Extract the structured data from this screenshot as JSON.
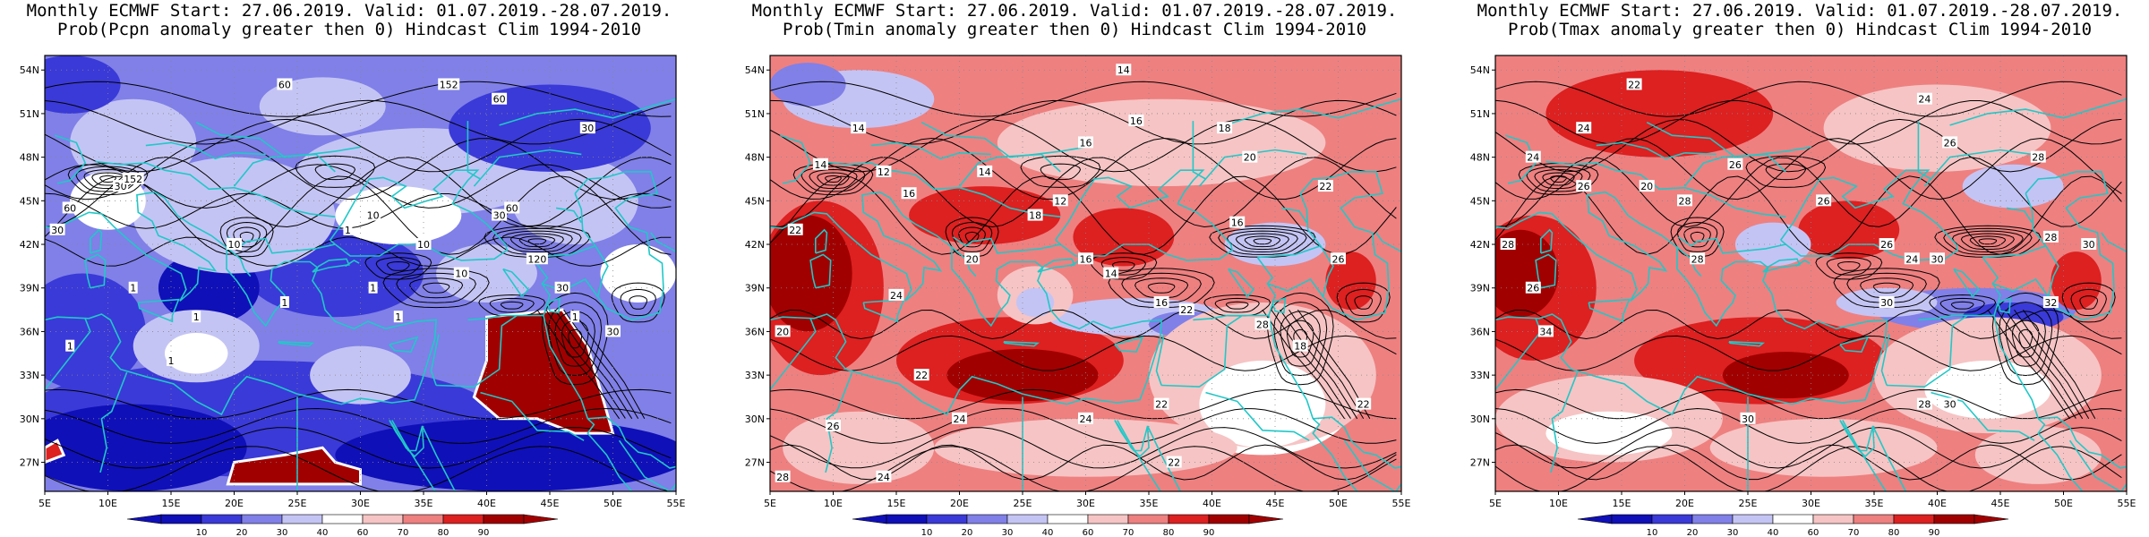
{
  "colors": {
    "c10": "#1010b8",
    "c20": "#3a3ad8",
    "c30": "#8080e8",
    "c40": "#c4c4f4",
    "c50": "#ffffff",
    "c60": "#f6c4c4",
    "c70": "#ee8080",
    "c80": "#dd2020",
    "c90": "#a00000",
    "coast": "#20c8c8",
    "contour": "#000000"
  },
  "colorbar": {
    "labels": [
      "10",
      "20",
      "30",
      "40",
      "60",
      "70",
      "80",
      "90"
    ]
  },
  "axes": {
    "lat_labels": [
      "54N",
      "51N",
      "48N",
      "45N",
      "42N",
      "39N",
      "36N",
      "33N",
      "30N",
      "27N"
    ],
    "lon_labels": [
      "5E",
      "10E",
      "15E",
      "20E",
      "25E",
      "30E",
      "35E",
      "40E",
      "45E",
      "50E",
      "55E"
    ]
  },
  "panels": [
    {
      "id": "pcpn",
      "title_line1": "Monthly ECMWF Start: 27.06.2019. Valid: 01.07.2019.-28.07.2019.",
      "title_line2": "Prob(Pcpn anomaly greater then 0) Hindcast Clim 1994-2010",
      "base": "c30",
      "blobs": [
        {
          "c": "c20",
          "lon": 22,
          "lat": 30,
          "rx": 19,
          "ry": 4
        },
        {
          "c": "c10",
          "lon": 12,
          "lat": 28,
          "rx": 9,
          "ry": 3
        },
        {
          "c": "c10",
          "lon": 42,
          "lat": 27.5,
          "rx": 14,
          "ry": 2.5
        },
        {
          "c": "c20",
          "lon": 8,
          "lat": 36,
          "rx": 5,
          "ry": 4
        },
        {
          "c": "c20",
          "lon": 28,
          "lat": 40,
          "rx": 7,
          "ry": 3
        },
        {
          "c": "c10",
          "lon": 18,
          "lat": 39,
          "rx": 4,
          "ry": 2.5
        },
        {
          "c": "c40",
          "lon": 20,
          "lat": 44,
          "rx": 8,
          "ry": 4
        },
        {
          "c": "c40",
          "lon": 35,
          "lat": 47,
          "rx": 10,
          "ry": 3
        },
        {
          "c": "c40",
          "lon": 12,
          "lat": 49,
          "rx": 5,
          "ry": 3
        },
        {
          "c": "c40",
          "lon": 47,
          "lat": 45,
          "rx": 5,
          "ry": 3
        },
        {
          "c": "c50",
          "lon": 33,
          "lat": 44,
          "rx": 5,
          "ry": 2
        },
        {
          "c": "c50",
          "lon": 10,
          "lat": 45,
          "rx": 3,
          "ry": 2
        },
        {
          "c": "c40",
          "lon": 17,
          "lat": 35,
          "rx": 5,
          "ry": 2.5
        },
        {
          "c": "c50",
          "lon": 17,
          "lat": 34.5,
          "rx": 2.5,
          "ry": 1.4
        },
        {
          "c": "c40",
          "lon": 30,
          "lat": 33,
          "rx": 4,
          "ry": 2
        },
        {
          "c": "c20",
          "lon": 7,
          "lat": 53,
          "rx": 4,
          "ry": 2
        },
        {
          "c": "c20",
          "lon": 45,
          "lat": 50,
          "rx": 8,
          "ry": 3
        },
        {
          "c": "c40",
          "lon": 27,
          "lat": 51.5,
          "rx": 5,
          "ry": 2
        },
        {
          "c": "c40",
          "lon": 40,
          "lat": 40,
          "rx": 4,
          "ry": 2
        },
        {
          "c": "c50",
          "lon": 52,
          "lat": 40,
          "rx": 3,
          "ry": 2
        }
      ],
      "patches": [
        {
          "c": "c90",
          "outline": "c50",
          "pts": [
            [
              40,
              37
            ],
            [
              46,
              37.5
            ],
            [
              48,
              35
            ],
            [
              49,
              32
            ],
            [
              50,
              29
            ],
            [
              47,
              29
            ],
            [
              44,
              30
            ],
            [
              41,
              30
            ],
            [
              39,
              31.5
            ],
            [
              40,
              34
            ]
          ]
        },
        {
          "c": "c90",
          "outline": "c50",
          "pts": [
            [
              19.5,
              25.5
            ],
            [
              20,
              27
            ],
            [
              24,
              27.5
            ],
            [
              27,
              28
            ],
            [
              28,
              27
            ],
            [
              30,
              26.5
            ],
            [
              30,
              25.5
            ]
          ]
        },
        {
          "c": "c80",
          "outline": "c50",
          "pts": [
            [
              5,
              28
            ],
            [
              6,
              28.5
            ],
            [
              6.5,
              27.5
            ],
            [
              5,
              27
            ]
          ]
        }
      ],
      "contour_labels": [
        {
          "t": "60",
          "lon": 24,
          "lat": 53
        },
        {
          "t": "60",
          "lon": 41,
          "lat": 52
        },
        {
          "t": "30",
          "lon": 48,
          "lat": 50
        },
        {
          "t": "152",
          "lon": 37,
          "lat": 53
        },
        {
          "t": "10",
          "lon": 20,
          "lat": 42
        },
        {
          "t": "10",
          "lon": 31,
          "lat": 44
        },
        {
          "t": "30",
          "lon": 11,
          "lat": 46
        },
        {
          "t": "152",
          "lon": 12,
          "lat": 46.5
        },
        {
          "t": "30",
          "lon": 6,
          "lat": 43
        },
        {
          "t": "60",
          "lon": 7,
          "lat": 44.5
        },
        {
          "t": "10",
          "lon": 38,
          "lat": 40
        },
        {
          "t": "30",
          "lon": 41,
          "lat": 44
        },
        {
          "t": "60",
          "lon": 42,
          "lat": 44.5
        },
        {
          "t": "10",
          "lon": 35,
          "lat": 42
        },
        {
          "t": "120",
          "lon": 44,
          "lat": 41
        },
        {
          "t": "30",
          "lon": 46,
          "lat": 39
        },
        {
          "t": "1",
          "lon": 29,
          "lat": 43
        },
        {
          "t": "1",
          "lon": 31,
          "lat": 39
        },
        {
          "t": "1",
          "lon": 24,
          "lat": 38
        },
        {
          "t": "1",
          "lon": 17,
          "lat": 37
        },
        {
          "t": "1",
          "lon": 12,
          "lat": 39
        },
        {
          "t": "1",
          "lon": 7,
          "lat": 35
        },
        {
          "t": "1",
          "lon": 15,
          "lat": 34
        },
        {
          "t": "1",
          "lon": 33,
          "lat": 37
        },
        {
          "t": "1",
          "lon": 47,
          "lat": 37
        },
        {
          "t": "30",
          "lon": 50,
          "lat": 36
        }
      ]
    },
    {
      "id": "tmin",
      "title_line1": "Monthly ECMWF Start: 27.06.2019. Valid: 01.07.2019.-28.07.2019.",
      "title_line2": "Prob(Tmin anomaly greater then 0) Hindcast Clim 1994-2010",
      "base": "c70",
      "blobs": [
        {
          "c": "c80",
          "lon": 9,
          "lat": 39,
          "rx": 5,
          "ry": 6
        },
        {
          "c": "c90",
          "lon": 8,
          "lat": 40,
          "rx": 3.5,
          "ry": 4
        },
        {
          "c": "c80",
          "lon": 24,
          "lat": 34,
          "rx": 9,
          "ry": 3
        },
        {
          "c": "c90",
          "lon": 25,
          "lat": 33,
          "rx": 6,
          "ry": 1.8
        },
        {
          "c": "c80",
          "lon": 33,
          "lat": 42.5,
          "rx": 4,
          "ry": 2
        },
        {
          "c": "c40",
          "lon": 34,
          "lat": 37,
          "rx": 7,
          "ry": 1.3
        },
        {
          "c": "c30",
          "lon": 38,
          "lat": 36.5,
          "rx": 3,
          "ry": 0.9
        },
        {
          "c": "c50",
          "lon": 44,
          "lat": 31,
          "rx": 7,
          "ry": 3.5
        },
        {
          "c": "c60",
          "lon": 44,
          "lat": 33,
          "rx": 9,
          "ry": 5
        },
        {
          "c": "c50",
          "lon": 44,
          "lat": 31,
          "rx": 5,
          "ry": 3
        },
        {
          "c": "c60",
          "lon": 36,
          "lat": 49,
          "rx": 13,
          "ry": 3
        },
        {
          "c": "c40",
          "lon": 12,
          "lat": 52,
          "rx": 6,
          "ry": 2
        },
        {
          "c": "c30",
          "lon": 8,
          "lat": 53,
          "rx": 3,
          "ry": 1.5
        },
        {
          "c": "c60",
          "lon": 30,
          "lat": 28,
          "rx": 12,
          "ry": 2
        },
        {
          "c": "c60",
          "lon": 12,
          "lat": 28,
          "rx": 6,
          "ry": 2.5
        },
        {
          "c": "c80",
          "lon": 51,
          "lat": 39.5,
          "rx": 2,
          "ry": 2
        },
        {
          "c": "c40",
          "lon": 45,
          "lat": 42,
          "rx": 4,
          "ry": 1.5
        },
        {
          "c": "c60",
          "lon": 26,
          "lat": 38.5,
          "rx": 3,
          "ry": 2
        },
        {
          "c": "c40",
          "lon": 26,
          "lat": 38,
          "rx": 1.5,
          "ry": 1
        },
        {
          "c": "c80",
          "lon": 22,
          "lat": 44,
          "rx": 6,
          "ry": 2
        }
      ],
      "patches": [],
      "contour_labels": [
        {
          "t": "14",
          "lon": 33,
          "lat": 54
        },
        {
          "t": "16",
          "lon": 34,
          "lat": 50.5
        },
        {
          "t": "18",
          "lon": 41,
          "lat": 50
        },
        {
          "t": "16",
          "lon": 30,
          "lat": 49
        },
        {
          "t": "14",
          "lon": 12,
          "lat": 50
        },
        {
          "t": "14",
          "lon": 9,
          "lat": 47.5
        },
        {
          "t": "14",
          "lon": 22,
          "lat": 47
        },
        {
          "t": "12",
          "lon": 14,
          "lat": 47
        },
        {
          "t": "16",
          "lon": 16,
          "lat": 45.5
        },
        {
          "t": "12",
          "lon": 28,
          "lat": 45
        },
        {
          "t": "20",
          "lon": 43,
          "lat": 48
        },
        {
          "t": "22",
          "lon": 49,
          "lat": 46
        },
        {
          "t": "18",
          "lon": 26,
          "lat": 44
        },
        {
          "t": "16",
          "lon": 42,
          "lat": 43.5
        },
        {
          "t": "22",
          "lon": 7,
          "lat": 43
        },
        {
          "t": "14",
          "lon": 32,
          "lat": 40
        },
        {
          "t": "16",
          "lon": 30,
          "lat": 41
        },
        {
          "t": "20",
          "lon": 21,
          "lat": 41
        },
        {
          "t": "26",
          "lon": 50,
          "lat": 41
        },
        {
          "t": "24",
          "lon": 15,
          "lat": 38.5
        },
        {
          "t": "16",
          "lon": 36,
          "lat": 38
        },
        {
          "t": "22",
          "lon": 38,
          "lat": 37.5
        },
        {
          "t": "28",
          "lon": 44,
          "lat": 36.5
        },
        {
          "t": "20",
          "lon": 6,
          "lat": 36
        },
        {
          "t": "22",
          "lon": 17,
          "lat": 33
        },
        {
          "t": "24",
          "lon": 20,
          "lat": 30
        },
        {
          "t": "24",
          "lon": 30,
          "lat": 30
        },
        {
          "t": "22",
          "lon": 36,
          "lat": 31
        },
        {
          "t": "26",
          "lon": 10,
          "lat": 29.5
        },
        {
          "t": "22",
          "lon": 37,
          "lat": 27
        },
        {
          "t": "24",
          "lon": 14,
          "lat": 26
        },
        {
          "t": "28",
          "lon": 6,
          "lat": 26
        },
        {
          "t": "22",
          "lon": 52,
          "lat": 31
        },
        {
          "t": "18",
          "lon": 47,
          "lat": 35
        }
      ]
    },
    {
      "id": "tmax",
      "title_line1": "Monthly ECMWF Start: 27.06.2019. Valid: 01.07.2019.-28.07.2019.",
      "title_line2": "Prob(Tmax anomaly greater then 0) Hindcast Clim 1994-2010",
      "base": "c70",
      "blobs": [
        {
          "c": "c80",
          "lon": 8,
          "lat": 39,
          "rx": 5,
          "ry": 5
        },
        {
          "c": "c90",
          "lon": 7,
          "lat": 40,
          "rx": 3,
          "ry": 3
        },
        {
          "c": "c80",
          "lon": 26,
          "lat": 34,
          "rx": 10,
          "ry": 3
        },
        {
          "c": "c90",
          "lon": 28,
          "lat": 33,
          "rx": 5,
          "ry": 1.6
        },
        {
          "c": "c80",
          "lon": 18,
          "lat": 51,
          "rx": 9,
          "ry": 3
        },
        {
          "c": "c80",
          "lon": 33,
          "lat": 43,
          "rx": 4,
          "ry": 2
        },
        {
          "c": "c30",
          "lon": 43,
          "lat": 37.5,
          "rx": 8,
          "ry": 1.5
        },
        {
          "c": "c20",
          "lon": 46,
          "lat": 37,
          "rx": 4,
          "ry": 1
        },
        {
          "c": "c40",
          "lon": 36,
          "lat": 38,
          "rx": 4,
          "ry": 1
        },
        {
          "c": "c50",
          "lon": 44,
          "lat": 32,
          "rx": 6,
          "ry": 2.5
        },
        {
          "c": "c60",
          "lon": 44,
          "lat": 33,
          "rx": 9,
          "ry": 4
        },
        {
          "c": "c50",
          "lon": 44,
          "lat": 32,
          "rx": 5,
          "ry": 2
        },
        {
          "c": "c40",
          "lon": 46,
          "lat": 46,
          "rx": 4,
          "ry": 1.5
        },
        {
          "c": "c60",
          "lon": 40,
          "lat": 50,
          "rx": 9,
          "ry": 3
        },
        {
          "c": "c60",
          "lon": 14,
          "lat": 30,
          "rx": 9,
          "ry": 3
        },
        {
          "c": "c50",
          "lon": 14,
          "lat": 29,
          "rx": 5,
          "ry": 1.5
        },
        {
          "c": "c60",
          "lon": 31,
          "lat": 28,
          "rx": 9,
          "ry": 2
        },
        {
          "c": "c80",
          "lon": 51,
          "lat": 39.5,
          "rx": 2,
          "ry": 2
        },
        {
          "c": "c60",
          "lon": 48,
          "lat": 27.5,
          "rx": 5,
          "ry": 2
        },
        {
          "c": "c40",
          "lon": 27,
          "lat": 42,
          "rx": 3,
          "ry": 1.5
        }
      ],
      "patches": [],
      "contour_labels": [
        {
          "t": "22",
          "lon": 16,
          "lat": 53
        },
        {
          "t": "24",
          "lon": 39,
          "lat": 52
        },
        {
          "t": "24",
          "lon": 12,
          "lat": 50
        },
        {
          "t": "26",
          "lon": 41,
          "lat": 49
        },
        {
          "t": "28",
          "lon": 48,
          "lat": 48
        },
        {
          "t": "24",
          "lon": 8,
          "lat": 48
        },
        {
          "t": "26",
          "lon": 24,
          "lat": 47.5
        },
        {
          "t": "20",
          "lon": 17,
          "lat": 46
        },
        {
          "t": "26",
          "lon": 12,
          "lat": 46
        },
        {
          "t": "28",
          "lon": 20,
          "lat": 45
        },
        {
          "t": "26",
          "lon": 31,
          "lat": 45
        },
        {
          "t": "30",
          "lon": 52,
          "lat": 42
        },
        {
          "t": "28",
          "lon": 49,
          "lat": 42.5
        },
        {
          "t": "26",
          "lon": 36,
          "lat": 42
        },
        {
          "t": "24",
          "lon": 38,
          "lat": 41
        },
        {
          "t": "30",
          "lon": 40,
          "lat": 41
        },
        {
          "t": "28",
          "lon": 21,
          "lat": 41
        },
        {
          "t": "26",
          "lon": 8,
          "lat": 39
        },
        {
          "t": "30",
          "lon": 36,
          "lat": 38
        },
        {
          "t": "32",
          "lon": 49,
          "lat": 38
        },
        {
          "t": "34",
          "lon": 9,
          "lat": 36
        },
        {
          "t": "30",
          "lon": 25,
          "lat": 30
        },
        {
          "t": "30",
          "lon": 41,
          "lat": 31
        },
        {
          "t": "28",
          "lon": 39,
          "lat": 31
        },
        {
          "t": "28",
          "lon": 6,
          "lat": 42
        }
      ]
    }
  ]
}
